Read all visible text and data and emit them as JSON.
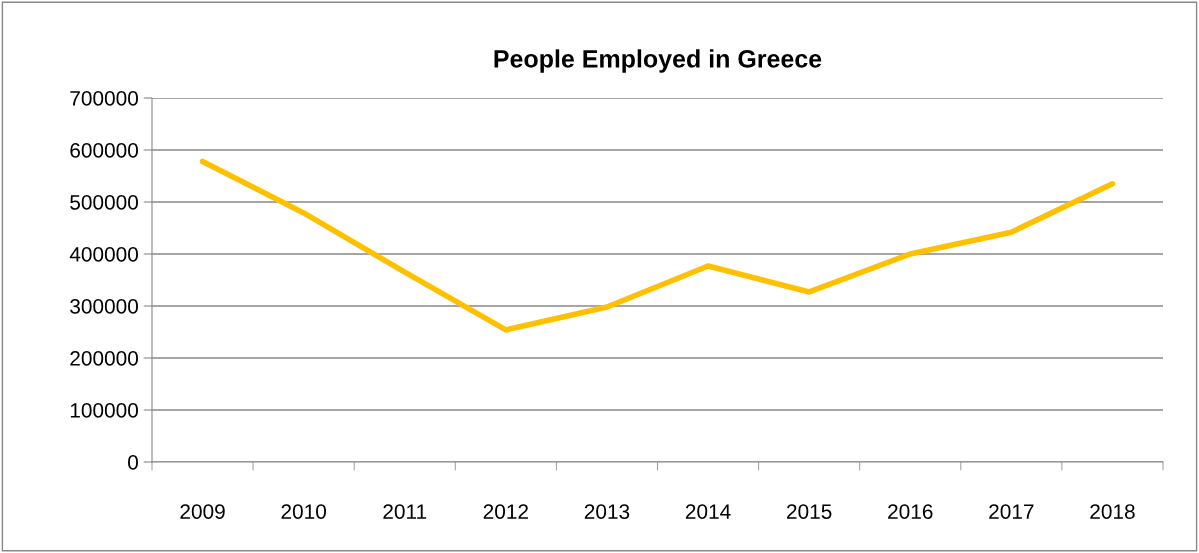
{
  "chart_data": {
    "type": "line",
    "title": "People Employed in Greece",
    "categories": [
      "2009",
      "2010",
      "2011",
      "2012",
      "2013",
      "2014",
      "2015",
      "2016",
      "2017",
      "2018"
    ],
    "series": [
      {
        "color": "#ffc000",
        "values": [
          578000,
          479000,
          365000,
          254000,
          298000,
          377000,
          327000,
          400000,
          442000,
          535000
        ]
      }
    ],
    "ylim": [
      0,
      700000
    ],
    "yticks": [
      0,
      100000,
      200000,
      300000,
      400000,
      500000,
      600000,
      700000
    ],
    "grid": "y",
    "marker": "none",
    "line_style": "solid"
  }
}
